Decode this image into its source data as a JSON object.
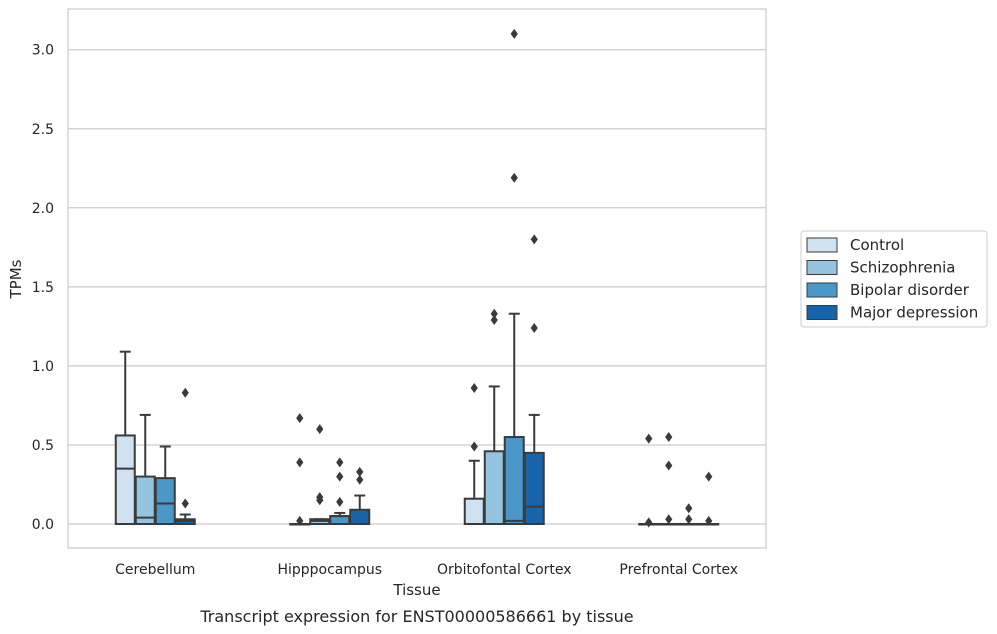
{
  "caption": "Transcript expression for ENST00000586661 by tissue",
  "chart_data": {
    "type": "box",
    "title": "",
    "xlabel": "Tissue",
    "ylabel": "TPMs",
    "ylim": [
      -0.15,
      3.25
    ],
    "yticks": [
      "0.0",
      "0.5",
      "1.0",
      "1.5",
      "2.0",
      "2.5",
      "3.0"
    ],
    "grid": true,
    "legend_placement": "right",
    "categories": [
      "Cerebellum",
      "Hipppocampus",
      "Orbitofontal Cortex",
      "Prefrontal Cortex"
    ],
    "series": [
      {
        "name": "Control",
        "color": "#d0e1f2",
        "boxes": [
          {
            "min": 0,
            "q1": 0,
            "median": 0.35,
            "q3": 0.56,
            "max": 1.09,
            "outliers": []
          },
          {
            "min": 0,
            "q1": 0,
            "median": 0,
            "q3": 0,
            "max": 0,
            "outliers": [
              0.02,
              0.39,
              0.67
            ]
          },
          {
            "min": 0,
            "q1": 0,
            "median": 0,
            "q3": 0.16,
            "max": 0.4,
            "outliers": [
              0.49,
              0.86
            ]
          },
          {
            "min": 0,
            "q1": 0,
            "median": 0,
            "q3": 0,
            "max": 0,
            "outliers": [
              0.01,
              0.54
            ]
          }
        ]
      },
      {
        "name": "Schizophrenia",
        "color": "#94c4df",
        "boxes": [
          {
            "min": 0,
            "q1": 0,
            "median": 0.04,
            "q3": 0.3,
            "max": 0.69,
            "outliers": []
          },
          {
            "min": 0,
            "q1": 0,
            "median": 0.02,
            "q3": 0.03,
            "max": 0.03,
            "outliers": [
              0.15,
              0.17,
              0.6
            ]
          },
          {
            "min": 0,
            "q1": 0,
            "median": 0,
            "q3": 0.46,
            "max": 0.87,
            "outliers": [
              1.29,
              1.33
            ]
          },
          {
            "min": 0,
            "q1": 0,
            "median": 0,
            "q3": 0,
            "max": 0,
            "outliers": [
              0.03,
              0.37,
              0.55
            ]
          }
        ]
      },
      {
        "name": "Bipolar disorder",
        "color": "#4a98c9",
        "boxes": [
          {
            "min": 0,
            "q1": 0,
            "median": 0.13,
            "q3": 0.29,
            "max": 0.49,
            "outliers": []
          },
          {
            "min": 0,
            "q1": 0,
            "median": 0.05,
            "q3": 0.05,
            "max": 0.07,
            "outliers": [
              0.14,
              0.3,
              0.39
            ]
          },
          {
            "min": 0,
            "q1": 0,
            "median": 0.02,
            "q3": 0.55,
            "max": 1.33,
            "outliers": [
              2.19,
              3.1
            ]
          },
          {
            "min": 0,
            "q1": 0,
            "median": 0,
            "q3": 0,
            "max": 0,
            "outliers": [
              0.03,
              0.1
            ]
          }
        ]
      },
      {
        "name": "Major depression",
        "color": "#1764ab",
        "boxes": [
          {
            "min": 0,
            "q1": 0,
            "median": 0.02,
            "q3": 0.03,
            "max": 0.06,
            "outliers": [
              0.13,
              0.83
            ]
          },
          {
            "min": 0,
            "q1": 0,
            "median": 0,
            "q3": 0.09,
            "max": 0.18,
            "outliers": [
              0.28,
              0.33
            ]
          },
          {
            "min": 0,
            "q1": 0,
            "median": 0.11,
            "q3": 0.45,
            "max": 0.69,
            "outliers": [
              1.24,
              1.8
            ]
          },
          {
            "min": 0,
            "q1": 0,
            "median": 0,
            "q3": 0,
            "max": 0,
            "outliers": [
              0.02,
              0.3
            ]
          }
        ]
      }
    ]
  }
}
